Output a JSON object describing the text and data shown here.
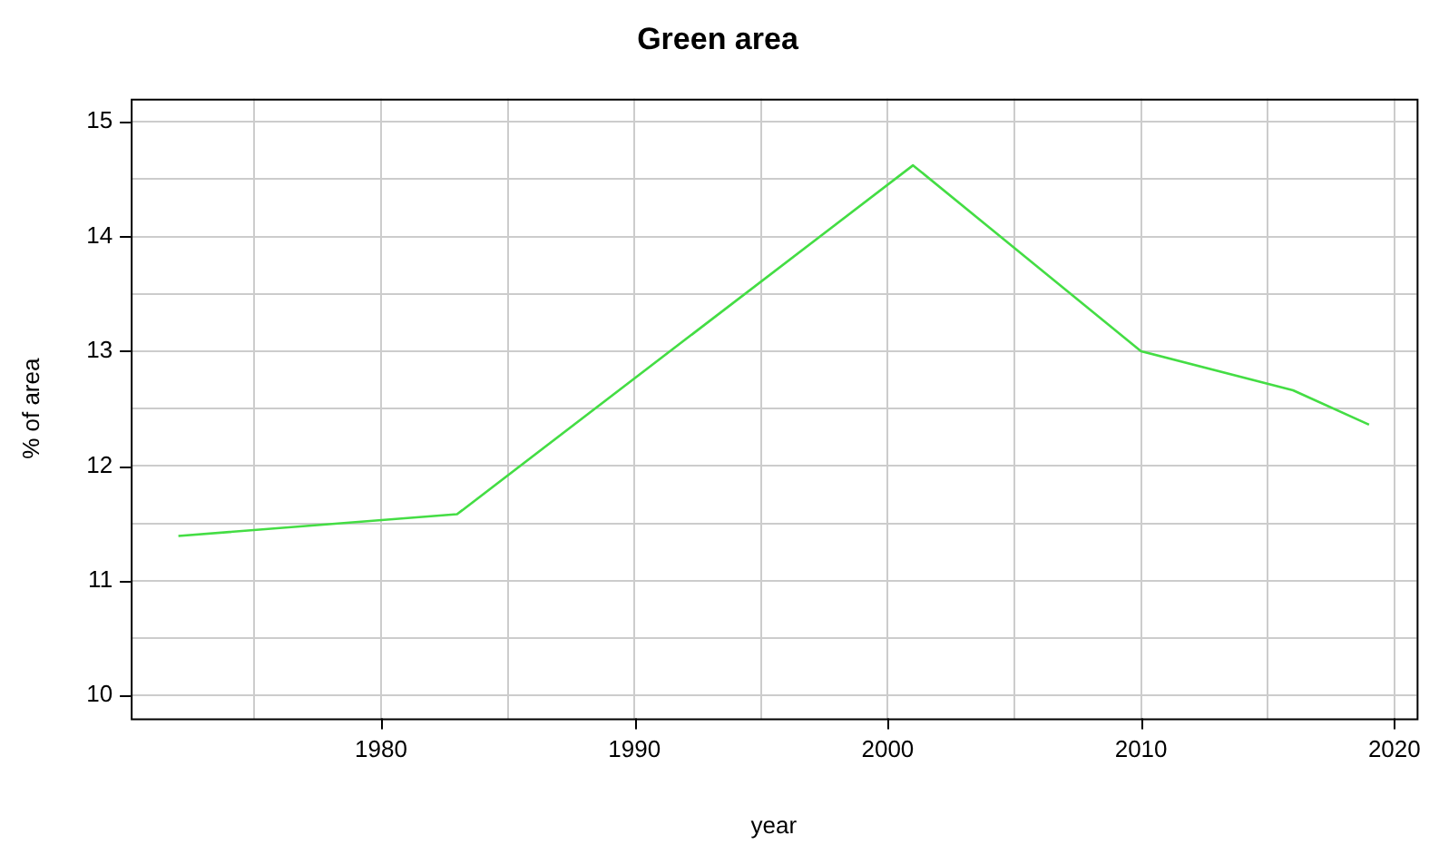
{
  "chart_data": {
    "type": "line",
    "title": "Green area",
    "xlabel": "year",
    "ylabel": "% of area",
    "x": [
      1972,
      1983,
      2001,
      2010,
      2016,
      2019
    ],
    "series": [
      {
        "color": "#44dd44",
        "values": [
          11.39,
          11.58,
          14.62,
          13.0,
          12.66,
          12.36
        ]
      }
    ],
    "xlim": [
      1970.12,
      2020.88
    ],
    "ylim": [
      9.8,
      15.2
    ],
    "xticks": [
      {
        "value": 1975,
        "label": null
      },
      1980,
      {
        "value": 1985,
        "label": null
      },
      1990,
      {
        "value": 1995,
        "label": null
      },
      2000,
      {
        "value": 2005,
        "label": null
      },
      2010,
      {
        "value": 2015,
        "label": null
      },
      2020
    ],
    "yticks": [
      10,
      {
        "value": 10.5,
        "label": null
      },
      11,
      {
        "value": 11.5,
        "label": null
      },
      12,
      {
        "value": 12.5,
        "label": null
      },
      13,
      {
        "value": 13.5,
        "label": null
      },
      14,
      {
        "value": 14.5,
        "label": null
      },
      15
    ],
    "grid": true,
    "legend": false,
    "marker": "none",
    "line_style": "solid"
  }
}
